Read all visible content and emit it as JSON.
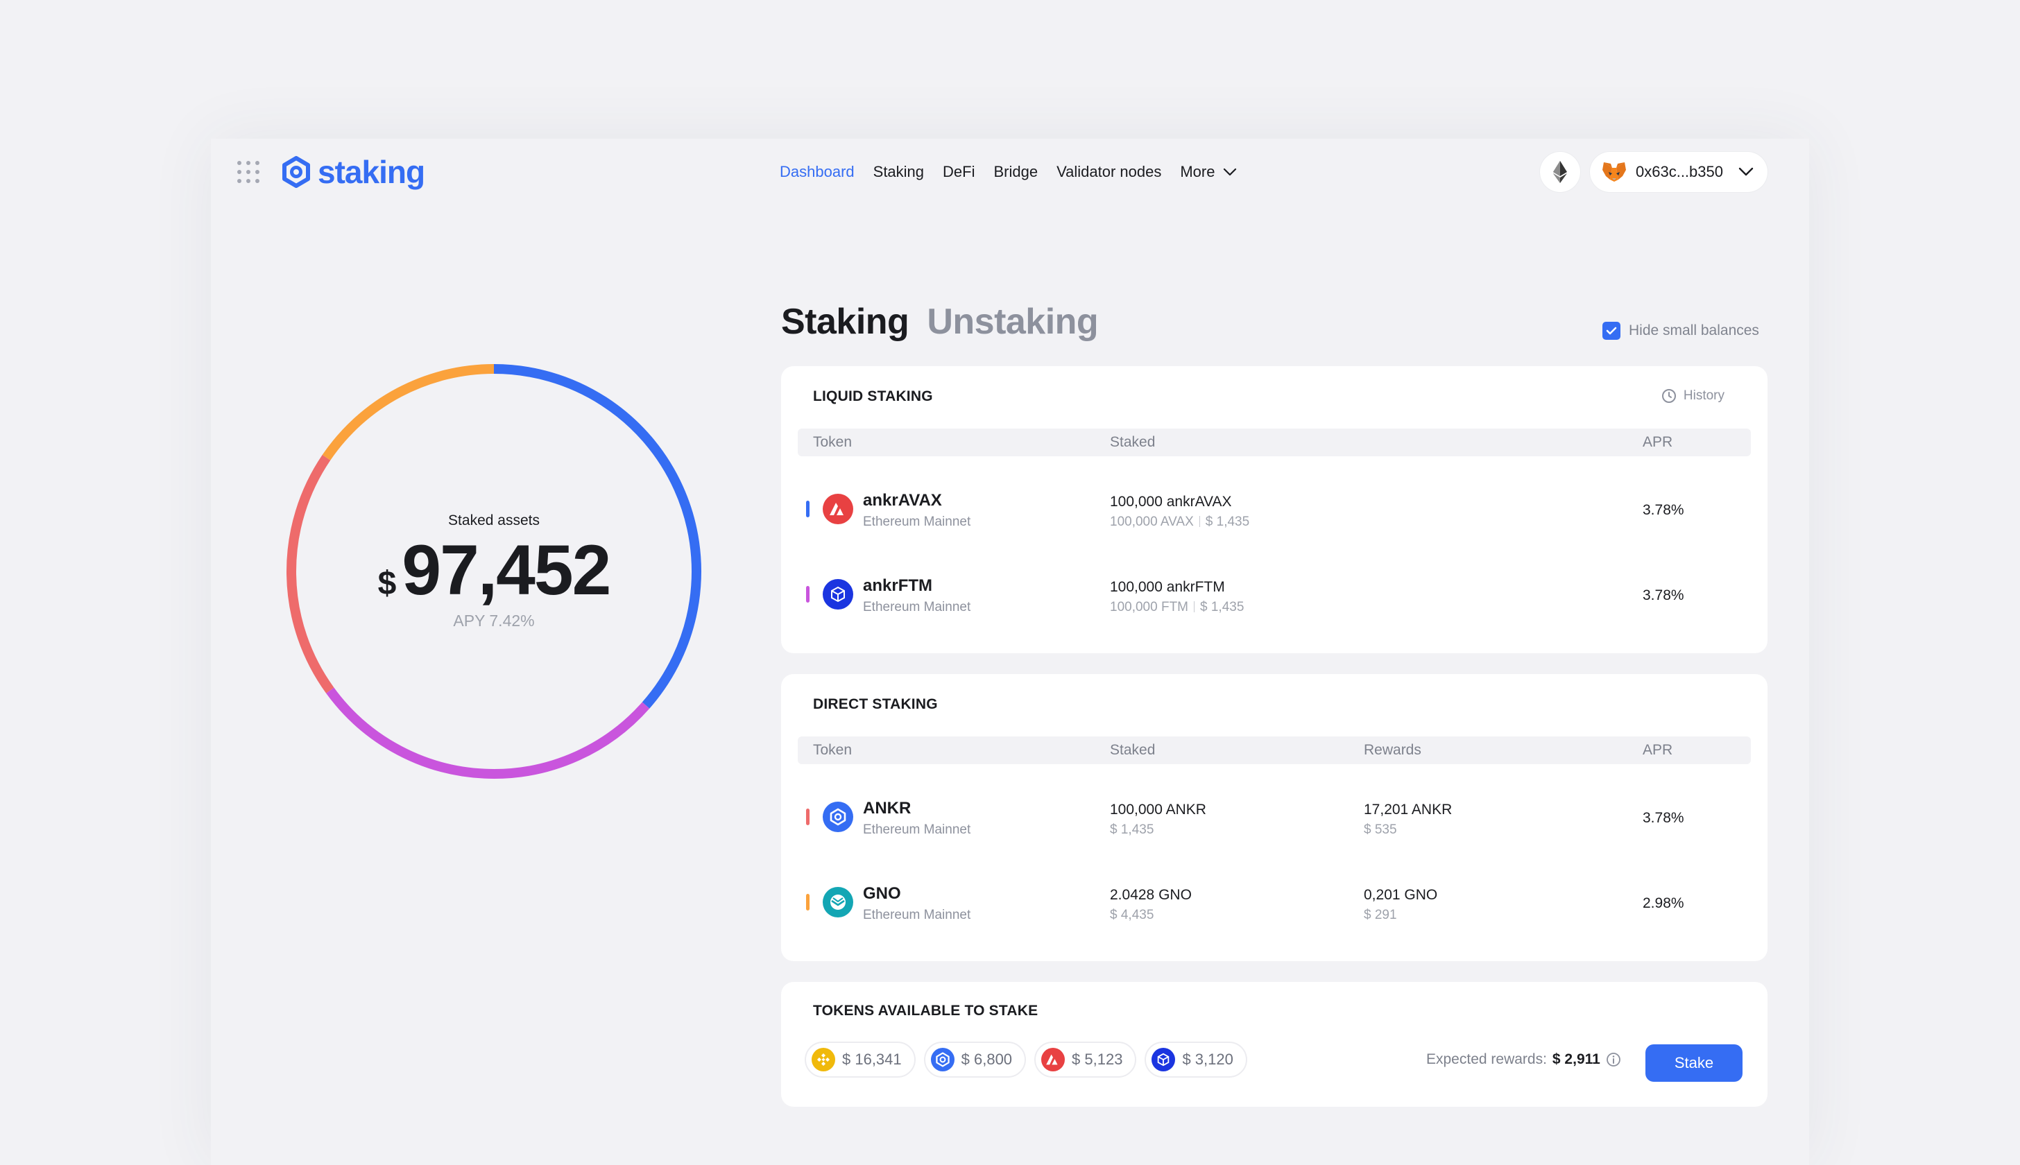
{
  "header": {
    "logo_text": "staking",
    "nav": [
      {
        "label": "Dashboard",
        "active": true
      },
      {
        "label": "Staking"
      },
      {
        "label": "DeFi"
      },
      {
        "label": "Bridge"
      },
      {
        "label": "Validator nodes"
      },
      {
        "label": "More"
      }
    ],
    "network_icon": "ethereum-icon",
    "wallet": {
      "icon": "metamask-fox-icon",
      "address": "0x63c...b350"
    }
  },
  "summary": {
    "label": "Staked assets",
    "currency": "$",
    "amount": "97,452",
    "apy": "APY 7.42%",
    "segments": [
      {
        "color": "#356df3",
        "fraction": 0.365
      },
      {
        "color": "#c955dd",
        "fraction": 0.285
      },
      {
        "color": "#ee6b6b",
        "fraction": 0.195
      },
      {
        "color": "#fba23c",
        "fraction": 0.155
      }
    ]
  },
  "tabs": {
    "active": "Staking",
    "inactive": "Unstaking"
  },
  "hide_small": {
    "label": "Hide small balances",
    "checked": true
  },
  "liquid": {
    "title": "LIQUID STAKING",
    "history": "History",
    "columns": [
      "Token",
      "Staked",
      "APR"
    ],
    "rows": [
      {
        "marker": "#356df3",
        "icon": "avalanche-icon",
        "icon_bg": "#e84142",
        "name": "ankrAVAX",
        "chain": "Ethereum Mainnet",
        "staked": "100,000 ankrAVAX",
        "sub_a": "100,000 AVAX",
        "sub_b": "$ 1,435",
        "apr": "3.78%"
      },
      {
        "marker": "#c955dd",
        "icon": "fantom-icon",
        "icon_bg": "#1b35e0",
        "name": "ankrFTM",
        "chain": "Ethereum Mainnet",
        "staked": "100,000 ankrFTM",
        "sub_a": "100,000 FTM",
        "sub_b": "$ 1,435",
        "apr": "3.78%"
      }
    ]
  },
  "direct": {
    "title": "DIRECT STAKING",
    "columns": [
      "Token",
      "Staked",
      "Rewards",
      "APR"
    ],
    "rows": [
      {
        "marker": "#ee6b6b",
        "icon": "ankr-icon",
        "icon_bg": "#356df3",
        "name": "ANKR",
        "chain": "Ethereum Mainnet",
        "staked": "100,000 ANKR",
        "staked_usd": "$ 1,435",
        "rewards": "17,201 ANKR",
        "rewards_usd": "$ 535",
        "apr": "3.78%"
      },
      {
        "marker": "#fba23c",
        "icon": "gnosis-icon",
        "icon_bg": "#13a6b4",
        "name": "GNO",
        "chain": "Ethereum Mainnet",
        "staked": "2.0428 GNO",
        "staked_usd": "$ 4,435",
        "rewards": "0,201 GNO",
        "rewards_usd": "$ 291",
        "apr": "2.98%"
      }
    ]
  },
  "available": {
    "title": "TOKENS AVAILABLE TO STAKE",
    "chips": [
      {
        "icon": "bnb-icon",
        "color": "#f0b90b",
        "value": "$ 16,341"
      },
      {
        "icon": "ankr-icon",
        "color": "#356df3",
        "value": "$ 6,800"
      },
      {
        "icon": "avalanche-icon",
        "color": "#e84142",
        "value": "$ 5,123"
      },
      {
        "icon": "fantom-icon",
        "color": "#1b35e0",
        "value": "$ 3,120"
      }
    ],
    "expected_label": "Expected rewards:",
    "expected_value": "$ 2,911",
    "stake_label": "Stake"
  }
}
